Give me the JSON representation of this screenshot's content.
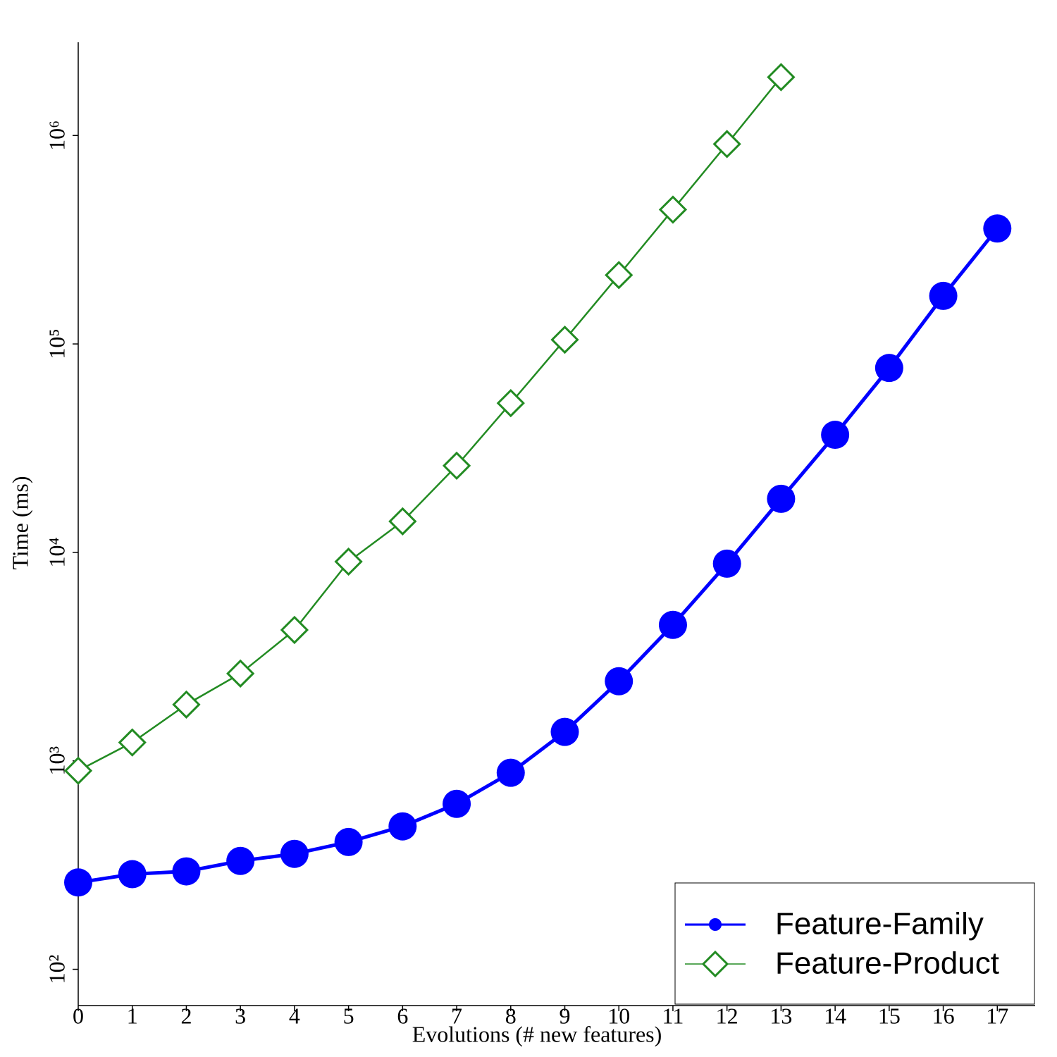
{
  "chart_data": {
    "type": "line",
    "xlabel": "Evolutions (# new features)",
    "ylabel": "Time (ms)",
    "x": [
      0,
      1,
      2,
      3,
      4,
      5,
      6,
      7,
      8,
      9,
      10,
      11,
      12,
      13,
      14,
      15,
      16,
      17
    ],
    "series": [
      {
        "name": "Feature-Family",
        "color": "#0000ff",
        "marker": "circle",
        "values": [
          261,
          286,
          295,
          331,
          358,
          408,
          485,
          622,
          877,
          1377,
          2410,
          4490,
          8830,
          18070,
          36650,
          76700,
          170000,
          358000
        ]
      },
      {
        "name": "Feature-Product",
        "color": "#228b22",
        "marker": "diamond",
        "values": [
          897,
          1225,
          1862,
          2623,
          4245,
          9030,
          14090,
          26050,
          52000,
          104800,
          214000,
          441000,
          910000,
          1905000,
          null,
          null,
          null,
          null
        ]
      }
    ],
    "xlim": [
      0,
      17.7
    ],
    "xticks": [
      0,
      1,
      2,
      3,
      4,
      5,
      6,
      7,
      8,
      9,
      10,
      11,
      12,
      13,
      14,
      15,
      16,
      17
    ],
    "ylim": [
      67,
      2800000
    ],
    "yscale": "log",
    "yticks": [
      {
        "value": 100,
        "label": "10²"
      },
      {
        "value": 1000,
        "label": "10³"
      },
      {
        "value": 10000,
        "label": "10⁴"
      },
      {
        "value": 100000,
        "label": "10⁵"
      },
      {
        "value": 1000000,
        "label": "10⁶"
      }
    ],
    "grid": false,
    "legend": "lower right"
  }
}
